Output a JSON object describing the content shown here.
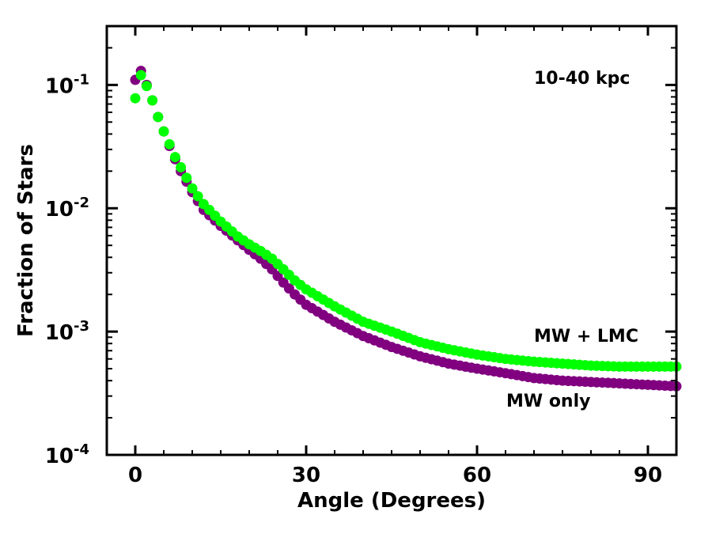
{
  "chart_data": {
    "type": "scatter",
    "title": "",
    "xlabel": "Angle (Degrees)",
    "ylabel": "Fraction of Stars",
    "xlim": [
      -5,
      95
    ],
    "ylim": [
      0.0001,
      0.3
    ],
    "yscale": "log",
    "x_ticks": [
      0,
      30,
      60,
      90
    ],
    "x_tick_labels": [
      "0",
      "30",
      "60",
      "90"
    ],
    "y_ticks": [
      0.0001,
      0.001,
      0.01,
      0.1
    ],
    "y_tick_labels": [
      {
        "base": "10",
        "exp": "-4"
      },
      {
        "base": "10",
        "exp": "-3"
      },
      {
        "base": "10",
        "exp": "-2"
      },
      {
        "base": "10",
        "exp": "-1"
      }
    ],
    "annotation": "10-40 kpc",
    "series": [
      {
        "name": "MW only",
        "label": "MW only",
        "color": "#800080",
        "anchors": [
          [
            0,
            0.11
          ],
          [
            1,
            0.13
          ],
          [
            2,
            0.1
          ],
          [
            3,
            0.075
          ],
          [
            4,
            0.055
          ],
          [
            5,
            0.042
          ],
          [
            6,
            0.032
          ],
          [
            7,
            0.025
          ],
          [
            8,
            0.02
          ],
          [
            10,
            0.0135
          ],
          [
            12,
            0.0097
          ],
          [
            15,
            0.0072
          ],
          [
            18,
            0.0055
          ],
          [
            20,
            0.0046
          ],
          [
            22,
            0.0039
          ],
          [
            24,
            0.0032
          ],
          [
            26,
            0.0025
          ],
          [
            28,
            0.002
          ],
          [
            30,
            0.00165
          ],
          [
            35,
            0.0012
          ],
          [
            40,
            0.00092
          ],
          [
            45,
            0.00075
          ],
          [
            50,
            0.00063
          ],
          [
            55,
            0.00055
          ],
          [
            60,
            0.0005
          ],
          [
            65,
            0.00046
          ],
          [
            70,
            0.00042
          ],
          [
            75,
            0.0004
          ],
          [
            80,
            0.00039
          ],
          [
            85,
            0.00038
          ],
          [
            90,
            0.00037
          ],
          [
            95,
            0.00036
          ]
        ]
      },
      {
        "name": "MW + LMC",
        "label": "MW + LMC",
        "color": "#00ff00",
        "anchors": [
          [
            0,
            0.078
          ],
          [
            1,
            0.12
          ],
          [
            2,
            0.098
          ],
          [
            3,
            0.075
          ],
          [
            4,
            0.055
          ],
          [
            5,
            0.042
          ],
          [
            6,
            0.033
          ],
          [
            7,
            0.026
          ],
          [
            8,
            0.0215
          ],
          [
            10,
            0.0145
          ],
          [
            12,
            0.0108
          ],
          [
            15,
            0.0078
          ],
          [
            18,
            0.0059
          ],
          [
            20,
            0.0051
          ],
          [
            22,
            0.0045
          ],
          [
            24,
            0.0039
          ],
          [
            26,
            0.0032
          ],
          [
            28,
            0.0026
          ],
          [
            30,
            0.0022
          ],
          [
            35,
            0.0016
          ],
          [
            40,
            0.0012
          ],
          [
            45,
            0.001
          ],
          [
            50,
            0.00082
          ],
          [
            55,
            0.00072
          ],
          [
            60,
            0.00065
          ],
          [
            65,
            0.0006
          ],
          [
            70,
            0.00057
          ],
          [
            75,
            0.00055
          ],
          [
            80,
            0.00053
          ],
          [
            85,
            0.00052
          ],
          [
            90,
            0.00052
          ],
          [
            95,
            0.00052
          ]
        ]
      }
    ]
  }
}
